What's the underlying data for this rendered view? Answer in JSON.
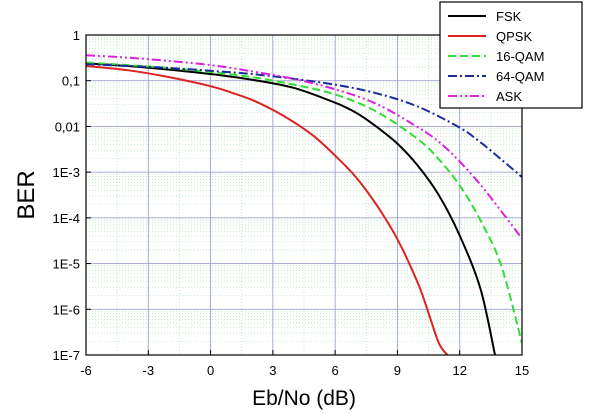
{
  "chart_data": {
    "type": "line",
    "xlabel": "Eb/No (dB)",
    "ylabel": "BER",
    "xlim": [
      -6,
      15
    ],
    "ylim": [
      1e-07,
      1
    ],
    "yscale": "log",
    "grid": true,
    "legend_position": "top-right",
    "x_ticks": [
      -6,
      -3,
      0,
      3,
      6,
      9,
      12,
      15
    ],
    "x_tick_labels": [
      "-6",
      "-3",
      "0",
      "3",
      "6",
      "9",
      "12",
      "15"
    ],
    "y_ticks": [
      1,
      0.1,
      0.01,
      0.001,
      0.0001,
      1e-05,
      1e-06,
      1e-07
    ],
    "y_tick_labels": [
      "1",
      "0,1",
      "0,01",
      "1E-3",
      "1E-4",
      "1E-5",
      "1E-6",
      "1E-7"
    ],
    "series": [
      {
        "name": "FSK",
        "color": "#000000",
        "dash": "solid",
        "x": [
          -6,
          -4,
          -2,
          0,
          2,
          4,
          6,
          7,
          8,
          9,
          10,
          11,
          12,
          13,
          13.7
        ],
        "y": [
          0.24,
          0.21,
          0.175,
          0.14,
          0.105,
          0.07,
          0.033,
          0.02,
          0.0098,
          0.0042,
          0.00135,
          0.00031,
          4.1e-05,
          2.8e-06,
          1e-07
        ]
      },
      {
        "name": "QPSK",
        "color": "#dd2222",
        "dash": "solid",
        "x": [
          -6,
          -4,
          -2,
          0,
          1,
          2,
          3,
          4,
          5,
          6,
          7,
          8,
          9,
          10,
          10.5,
          11,
          11.4
        ],
        "y": [
          0.21,
          0.17,
          0.12,
          0.076,
          0.055,
          0.038,
          0.023,
          0.0125,
          0.006,
          0.0023,
          0.00078,
          0.00019,
          3.4e-05,
          3.6e-06,
          8.2e-07,
          1.8e-07,
          1e-07
        ]
      },
      {
        "name": "16-QAM",
        "color": "#33dd33",
        "dash": "dashed",
        "x": [
          -6,
          -4,
          -2,
          0,
          2,
          4,
          6,
          8,
          10,
          11,
          12,
          13,
          14,
          15
        ],
        "y": [
          0.25,
          0.22,
          0.19,
          0.155,
          0.12,
          0.082,
          0.05,
          0.021,
          0.0052,
          0.0019,
          0.00051,
          8.8e-05,
          9e-06,
          1.8e-07
        ]
      },
      {
        "name": "64-QAM",
        "color": "#1a2aa0",
        "dash": "dashdot",
        "x": [
          -6,
          -4,
          -2,
          0,
          2,
          4,
          6,
          8,
          10,
          12,
          13,
          14,
          15
        ],
        "y": [
          0.23,
          0.21,
          0.19,
          0.165,
          0.14,
          0.11,
          0.082,
          0.053,
          0.027,
          0.0094,
          0.0045,
          0.0019,
          0.00078
        ]
      },
      {
        "name": "ASK",
        "color": "#dd22dd",
        "dash": "dashdotdot",
        "x": [
          -6,
          -4,
          -2,
          0,
          2,
          4,
          6,
          8,
          10,
          11,
          12,
          13,
          14,
          15
        ],
        "y": [
          0.36,
          0.32,
          0.27,
          0.22,
          0.16,
          0.11,
          0.065,
          0.031,
          0.0095,
          0.0046,
          0.0017,
          0.00053,
          0.00014,
          3.5e-05
        ]
      }
    ]
  }
}
